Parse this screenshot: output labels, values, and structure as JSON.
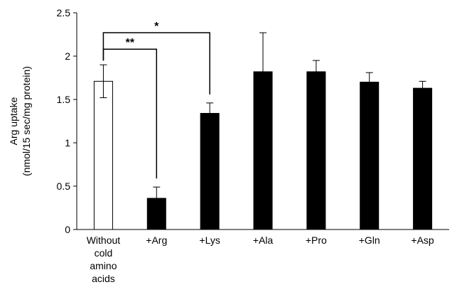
{
  "chart_data": {
    "type": "bar",
    "ylabel_lines": [
      "Arg uptake",
      "(nmol/15 sec/mg protein)"
    ],
    "ylim": [
      0,
      2.5
    ],
    "yticks": [
      0,
      0.5,
      1,
      1.5,
      2,
      2.5
    ],
    "ytick_labels": [
      "0",
      "0.5",
      "1",
      "1.5",
      "2",
      "2.5"
    ],
    "bars": [
      {
        "label_lines": [
          "Without",
          "cold",
          "amino",
          "acids"
        ],
        "value": 1.71,
        "error": 0.19,
        "fill": "#ffffff"
      },
      {
        "label_lines": [
          "+Arg"
        ],
        "value": 0.36,
        "error": 0.13,
        "fill": "#000000"
      },
      {
        "label_lines": [
          "+Lys"
        ],
        "value": 1.34,
        "error": 0.12,
        "fill": "#000000"
      },
      {
        "label_lines": [
          "+Ala"
        ],
        "value": 1.82,
        "error": 0.45,
        "fill": "#000000"
      },
      {
        "label_lines": [
          "+Pro"
        ],
        "value": 1.82,
        "error": 0.13,
        "fill": "#000000"
      },
      {
        "label_lines": [
          "+Gln"
        ],
        "value": 1.7,
        "error": 0.11,
        "fill": "#000000"
      },
      {
        "label_lines": [
          "+Asp"
        ],
        "value": 1.63,
        "error": 0.08,
        "fill": "#000000"
      }
    ],
    "significance": [
      {
        "from": 0,
        "to": 1,
        "label": "**",
        "level": 2.08
      },
      {
        "from": 0,
        "to": 2,
        "label": "*",
        "level": 2.27
      }
    ],
    "grid": false,
    "legend": false
  }
}
